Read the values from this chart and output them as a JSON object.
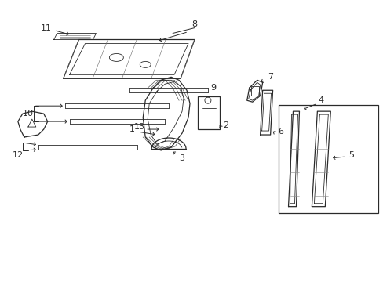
{
  "bg_color": "#ffffff",
  "lc": "#2a2a2a",
  "figsize": [
    4.89,
    3.6
  ],
  "dpi": 100,
  "xlim": [
    0,
    489
  ],
  "ylim": [
    0,
    360
  ]
}
